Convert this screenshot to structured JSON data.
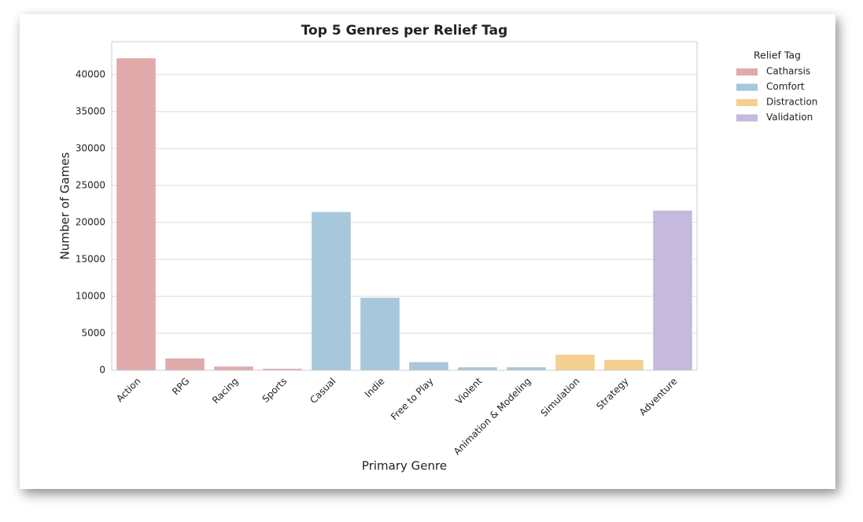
{
  "chart_data": {
    "type": "bar",
    "title": "Top 5 Genres per Relief Tag",
    "x_label": "Primary Genre",
    "y_label": "Number of Games",
    "categories": [
      "Action",
      "RPG",
      "Racing",
      "Sports",
      "Casual",
      "Indie",
      "Free to Play",
      "Violent",
      "Animation & Modeling",
      "Simulation",
      "Strategy",
      "Adventure"
    ],
    "series": [
      {
        "name": "Catharsis",
        "color": "#e0aaab",
        "values": [
          42200,
          1600,
          500,
          200,
          null,
          null,
          null,
          null,
          null,
          null,
          null,
          null
        ]
      },
      {
        "name": "Comfort",
        "color": "#a6c7dc",
        "values": [
          null,
          null,
          null,
          null,
          21400,
          9800,
          1100,
          400,
          400,
          null,
          null,
          null
        ]
      },
      {
        "name": "Distraction",
        "color": "#f3d08f",
        "values": [
          null,
          null,
          null,
          null,
          null,
          null,
          null,
          null,
          null,
          2100,
          1400,
          null
        ]
      },
      {
        "name": "Validation",
        "color": "#c5b9dd",
        "values": [
          null,
          null,
          null,
          null,
          null,
          null,
          null,
          null,
          null,
          null,
          null,
          21600
        ]
      }
    ],
    "legend_title": "Relief Tag",
    "legend": "outside-upper-right",
    "ylim": [
      0,
      44450
    ],
    "yticks": [
      0,
      5000,
      10000,
      15000,
      20000,
      25000,
      30000,
      35000,
      40000
    ],
    "grid": true
  }
}
